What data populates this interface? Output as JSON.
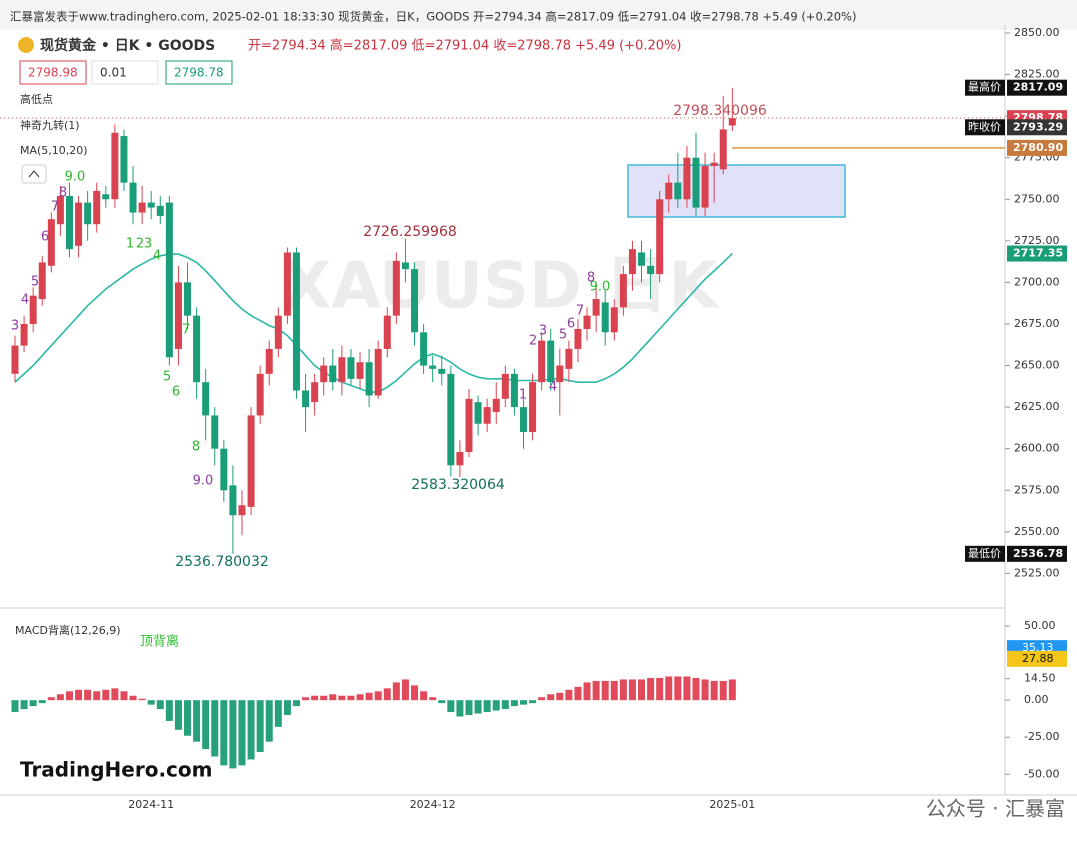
{
  "header": {
    "caption": "汇暴富发表于www.tradinghero.com, 2025-02-01 18:33:30 现货黄金，日K，GOODS 开=2794.34 高=2817.09 低=2791.04 收=2798.78 +5.49 (+0.20%)",
    "symbol": "现货黄金 • 日K • GOODS",
    "ohlc": "开=2794.34 高=2817.09 低=2791.04 收=2798.78 +5.49 (+0.20%)",
    "inputs": [
      "2798.98",
      "0.01",
      "2798.78"
    ],
    "indicators": [
      "高低点",
      "神奇九转(1)",
      "MA(5,10,20)"
    ],
    "watermark": "XAUUSD 日K",
    "logo": "TradingHero.com",
    "footer": "公众号 · 汇暴富"
  },
  "chart_data": [
    {
      "type": "candlestick",
      "categories": [
        null,
        null,
        null,
        null,
        null,
        null,
        null,
        null,
        null,
        null,
        null,
        null,
        null,
        null,
        null,
        "2024-11",
        null,
        null,
        null,
        null,
        null,
        null,
        null,
        null,
        null,
        null,
        null,
        null,
        null,
        null,
        null,
        null,
        null,
        null,
        null,
        null,
        null,
        null,
        null,
        null,
        null,
        null,
        null,
        null,
        null,
        null,
        "2024-12",
        null,
        null,
        null,
        null,
        null,
        null,
        null,
        null,
        null,
        null,
        null,
        null,
        null,
        null,
        null,
        null,
        null,
        null,
        null,
        null,
        null,
        null,
        null,
        null,
        null,
        null,
        null,
        null,
        null,
        null,
        null,
        null,
        "2025-01"
      ],
      "open": [
        2645,
        2662,
        2675,
        2690,
        2710,
        2735,
        2752,
        2722,
        2748,
        2735,
        2753,
        2750,
        2788,
        2760,
        2742,
        2748,
        2746,
        2748,
        2660,
        2700,
        2680,
        2640,
        2620,
        2600,
        2578,
        2560,
        2565,
        2620,
        2645,
        2660,
        2680,
        2718,
        2635,
        2628,
        2640,
        2650,
        2640,
        2655,
        2642,
        2652,
        2632,
        2660,
        2680,
        2712,
        2708,
        2670,
        2650,
        2648,
        2645,
        2590,
        2598,
        2628,
        2615,
        2622,
        2630,
        2645,
        2625,
        2610,
        2640,
        2665,
        2640,
        2648,
        2660,
        2672,
        2680,
        2688,
        2670,
        2685,
        2705,
        2718,
        2710,
        2705,
        2750,
        2760,
        2750,
        2775,
        2745,
        2770,
        2768,
        2794.34
      ],
      "high": [
        2668,
        2680,
        2697,
        2716,
        2742,
        2758,
        2760,
        2752,
        2755,
        2760,
        2758,
        2795,
        2792,
        2770,
        2758,
        2755,
        2752,
        2752,
        2710,
        2712,
        2685,
        2648,
        2625,
        2605,
        2590,
        2575,
        2625,
        2650,
        2665,
        2685,
        2721,
        2721,
        2645,
        2645,
        2655,
        2660,
        2662,
        2660,
        2658,
        2660,
        2665,
        2685,
        2718,
        2726.26,
        2712,
        2675,
        2656,
        2656,
        2650,
        2605,
        2636,
        2632,
        2630,
        2640,
        2650,
        2648,
        2630,
        2645,
        2670,
        2672,
        2660,
        2665,
        2678,
        2685,
        2700,
        2695,
        2690,
        2710,
        2725,
        2725,
        2720,
        2755,
        2765,
        2778,
        2782,
        2790,
        2778,
        2778,
        2812,
        2817.09
      ],
      "low": [
        2640,
        2658,
        2670,
        2686,
        2706,
        2728,
        2715,
        2715,
        2725,
        2730,
        2745,
        2745,
        2755,
        2735,
        2735,
        2738,
        2735,
        2650,
        2650,
        2672,
        2630,
        2605,
        2590,
        2568,
        2536.78,
        2548,
        2560,
        2615,
        2638,
        2655,
        2675,
        2630,
        2610,
        2620,
        2632,
        2635,
        2632,
        2638,
        2636,
        2625,
        2630,
        2655,
        2675,
        2700,
        2662,
        2645,
        2640,
        2638,
        2583.32,
        2583,
        2595,
        2608,
        2610,
        2615,
        2625,
        2620,
        2600,
        2605,
        2635,
        2635,
        2620,
        2640,
        2652,
        2665,
        2670,
        2662,
        2665,
        2680,
        2695,
        2700,
        2690,
        2700,
        2742,
        2745,
        2745,
        2740,
        2740,
        2748,
        2765,
        2791.04
      ],
      "close": [
        2662,
        2675,
        2692,
        2712,
        2738,
        2752,
        2720,
        2748,
        2735,
        2755,
        2750,
        2790,
        2760,
        2742,
        2748,
        2745,
        2740,
        2655,
        2700,
        2680,
        2640,
        2620,
        2600,
        2575,
        2560,
        2566,
        2620,
        2645,
        2660,
        2680,
        2718,
        2635,
        2625,
        2640,
        2650,
        2640,
        2655,
        2642,
        2652,
        2632,
        2660,
        2680,
        2713,
        2708,
        2670,
        2650,
        2648,
        2645,
        2590,
        2598,
        2630,
        2615,
        2625,
        2630,
        2645,
        2625,
        2610,
        2640,
        2665,
        2640,
        2650,
        2660,
        2672,
        2680,
        2690,
        2670,
        2685,
        2705,
        2720,
        2710,
        2705,
        2750,
        2760,
        2750,
        2775,
        2745,
        2770,
        2772,
        2792,
        2798.78
      ],
      "up_color": "#d9434f",
      "down_color": "#1a9e79",
      "ma": {
        "name": "MA(5,10,20)",
        "color": "#2bb8a8",
        "values": [
          2640,
          2645,
          2650,
          2656,
          2662,
          2668,
          2674,
          2680,
          2686,
          2691,
          2696,
          2700,
          2704,
          2708,
          2711,
          2714,
          2716,
          2717,
          2717,
          2715,
          2712,
          2707,
          2701,
          2695,
          2689,
          2684,
          2680,
          2677,
          2674,
          2672,
          2668,
          2662,
          2656,
          2650,
          2646,
          2643,
          2640,
          2638,
          2636,
          2634,
          2634,
          2637,
          2641,
          2646,
          2651,
          2655,
          2657,
          2655,
          2652,
          2648,
          2645,
          2643,
          2642,
          2642,
          2642,
          2641,
          2641,
          2641,
          2641,
          2642,
          2642,
          2641,
          2640,
          2640,
          2640,
          2642,
          2645,
          2649,
          2654,
          2660,
          2666,
          2672,
          2678,
          2684,
          2690,
          2696,
          2702,
          2707,
          2712,
          2717.35
        ]
      },
      "ylim": [
        2509,
        2856
      ],
      "yticks": [
        {
          "value": 2850,
          "label": "2850.00"
        },
        {
          "value": 2825,
          "label": "2825.00"
        },
        {
          "value": 2800,
          "label": "2800.00"
        },
        {
          "value": 2775,
          "label": "2775.00"
        },
        {
          "value": 2750,
          "label": "2750.00"
        },
        {
          "value": 2725,
          "label": "2725.00"
        },
        {
          "value": 2700,
          "label": "2700.00"
        },
        {
          "value": 2675,
          "label": "2675.00"
        },
        {
          "value": 2650,
          "label": "2650.00"
        },
        {
          "value": 2625,
          "label": "2625.00"
        },
        {
          "value": 2600,
          "label": "2600.00"
        },
        {
          "value": 2575,
          "label": "2575.00"
        },
        {
          "value": 2550,
          "label": "2550.00"
        },
        {
          "value": 2525,
          "label": "2525.00"
        }
      ],
      "price_labels": [
        {
          "name": "最高价",
          "value": 2817.09
        },
        {
          "value": 2798.78
        },
        {
          "name": "昨收价",
          "value": 2793.29
        },
        {
          "value": 2780.9,
          "label": "2780.90"
        },
        {
          "value": 2717.35
        },
        {
          "name": "最低价",
          "value": 2536.78
        }
      ],
      "annotations": [
        {
          "value": 2536.780032,
          "label": "2536.780032"
        },
        {
          "value": 2726.259968,
          "label": "2726.259968"
        },
        {
          "value": 2583.320064,
          "label": "2583.320064"
        },
        {
          "value": 2798.340096,
          "label": "2798.340096"
        }
      ],
      "td_labels": [
        "3",
        "4",
        "5",
        "6",
        "7",
        "8",
        "9.0",
        "1",
        "2",
        "3",
        "4",
        "7",
        "5",
        "6",
        "8",
        "9.0",
        "1",
        "2",
        "3",
        "4",
        "5",
        "6",
        "7",
        "8",
        "9.0"
      ]
    },
    {
      "type": "bar",
      "title": "MACD背离(12,26,9)",
      "annotation": "顶背离",
      "values": [
        -8,
        -6,
        -4,
        -2,
        2,
        4,
        6,
        7,
        7,
        6,
        7,
        8,
        6,
        3,
        1,
        -3,
        -6,
        -14,
        -20,
        -24,
        -28,
        -33,
        -38,
        -44,
        -46,
        -44,
        -40,
        -35,
        -28,
        -18,
        -10,
        -4,
        2,
        3,
        3,
        4,
        3,
        3,
        4,
        5,
        6,
        8,
        12,
        14,
        10,
        6,
        2,
        -2,
        -8,
        -11,
        -10,
        -9,
        -8,
        -7,
        -6,
        -4,
        -3,
        -2,
        2,
        4,
        5,
        7,
        9,
        12,
        13,
        13,
        13,
        14,
        14,
        14,
        15,
        15,
        16,
        16,
        16,
        15,
        14,
        13,
        13,
        14
      ],
      "up_color": "#e04a5a",
      "down_color": "#26a17b",
      "ylim": [
        -64,
        57.5
      ],
      "yticks": [
        {
          "value": 50,
          "label": "50.00"
        },
        {
          "value": 14.5,
          "label": "14.50"
        },
        {
          "value": 0,
          "label": "0.00"
        },
        {
          "value": -25,
          "label": "-25.00"
        },
        {
          "value": -50,
          "label": "-50.00"
        }
      ],
      "line_values": [
        {
          "value": 35.13,
          "color": "#2196f3"
        },
        {
          "value": 27.88,
          "color": "#f5c518"
        }
      ]
    }
  ]
}
